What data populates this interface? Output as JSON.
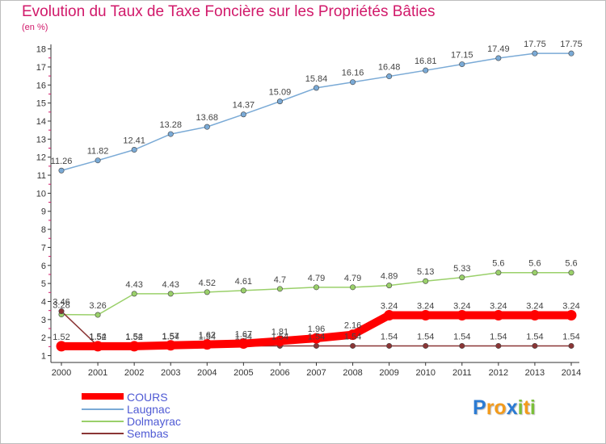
{
  "chart_data": {
    "type": "line",
    "title": "Evolution du Taux de Taxe Foncière sur les Propriétés Bâties",
    "subtitle": "(en %)",
    "xlabel": "",
    "ylabel": "",
    "x": [
      "2000",
      "2001",
      "2002",
      "2003",
      "2004",
      "2005",
      "2006",
      "2007",
      "2008",
      "2009",
      "2010",
      "2011",
      "2012",
      "2013",
      "2014"
    ],
    "ylim": [
      1,
      18
    ],
    "yticks": [
      1,
      2,
      3,
      4,
      5,
      6,
      7,
      8,
      9,
      10,
      11,
      12,
      13,
      14,
      15,
      16,
      17,
      18
    ],
    "grid": false,
    "legend_position": "bottom-left",
    "series": [
      {
        "name": "COURS",
        "color": "#ff0000",
        "values": [
          1.52,
          1.52,
          1.52,
          1.57,
          1.62,
          1.67,
          1.81,
          1.96,
          2.16,
          3.24,
          3.24,
          3.24,
          3.24,
          3.24,
          3.24
        ],
        "labels": [
          "1.52",
          "1.52",
          "1.52",
          "1.57",
          "1.62",
          "1.67",
          "1.81",
          "1.96",
          "2.16",
          "3.24",
          "3.24",
          "3.24",
          "3.24",
          "3.24",
          "3.24"
        ]
      },
      {
        "name": "Laugnac",
        "color": "#7aaad6",
        "values": [
          11.26,
          11.82,
          12.41,
          13.28,
          13.68,
          14.37,
          15.09,
          15.84,
          16.16,
          16.48,
          16.81,
          17.15,
          17.49,
          17.75,
          17.75
        ],
        "labels": [
          "11.26",
          "11.82",
          "12.41",
          "13.28",
          "13.68",
          "14.37",
          "15.09",
          "15.84",
          "16.16",
          "16.48",
          "16.81",
          "17.15",
          "17.49",
          "17.75",
          "17.75"
        ]
      },
      {
        "name": "Dolmayrac",
        "color": "#9ad06a",
        "values": [
          3.28,
          3.26,
          4.43,
          4.43,
          4.52,
          4.61,
          4.7,
          4.79,
          4.79,
          4.89,
          5.13,
          5.33,
          5.6,
          5.6,
          5.6
        ],
        "labels": [
          "3.28",
          "3.26",
          "4.43",
          "4.43",
          "4.52",
          "4.61",
          "4.7",
          "4.79",
          "4.79",
          "4.89",
          "5.13",
          "5.33",
          "5.6",
          "5.6",
          "5.6"
        ]
      },
      {
        "name": "Sembas",
        "color": "#8a3535",
        "values": [
          3.46,
          1.54,
          1.54,
          1.54,
          1.54,
          1.54,
          1.54,
          1.54,
          1.54,
          1.54,
          1.54,
          1.54,
          1.54,
          1.54,
          1.54
        ],
        "labels": [
          "3.46",
          "1.54",
          "1.54",
          "1.54",
          "1.54",
          "1.54",
          "1.54",
          "1.54",
          "1.54",
          "1.54",
          "1.54",
          "1.54",
          "1.54",
          "1.54",
          "1.54"
        ]
      }
    ]
  },
  "logo": {
    "letters": [
      "P",
      "r",
      "o",
      "x",
      "i",
      "t",
      "i"
    ],
    "colors": [
      "#2b7bd3",
      "#f39b1c",
      "#f39b1c",
      "#2b7bd3",
      "#7bbf3a",
      "#f39b1c",
      "#7bbf3a"
    ]
  }
}
